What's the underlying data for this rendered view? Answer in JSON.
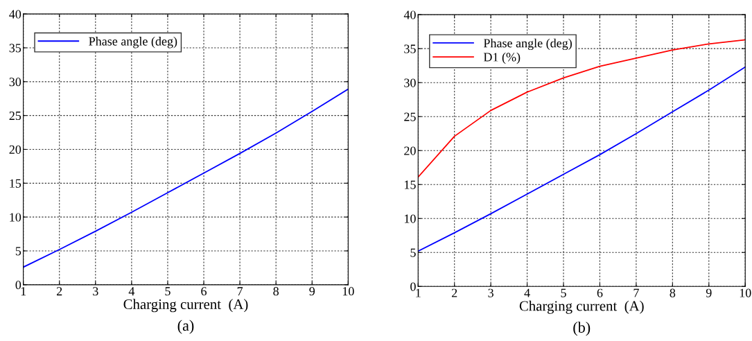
{
  "chart_data": [
    {
      "type": "line",
      "xlabel": "Charging current  (A)",
      "annotations": [
        "(a)"
      ],
      "x": [
        1,
        2,
        3,
        4,
        5,
        6,
        7,
        8,
        9,
        10
      ],
      "series": [
        {
          "name": "Phase angle (deg)",
          "color": "#0000ff",
          "values": [
            2.6,
            5.2,
            7.9,
            10.7,
            13.6,
            16.5,
            19.4,
            22.4,
            25.6,
            28.9
          ]
        }
      ],
      "xlim": [
        1,
        10
      ],
      "xticks": [
        1,
        2,
        3,
        4,
        5,
        6,
        7,
        8,
        9,
        10
      ],
      "ylim": [
        0,
        40
      ],
      "yticks": [
        0,
        5,
        10,
        15,
        20,
        25,
        30,
        35,
        40
      ],
      "grid": true,
      "legend": "top left"
    },
    {
      "type": "line",
      "xlabel": "Charging current  (A)",
      "annotations": [
        "(b)"
      ],
      "x": [
        1,
        2,
        3,
        4,
        5,
        6,
        7,
        8,
        9,
        10
      ],
      "series": [
        {
          "name": "Phase angle (deg)",
          "color": "#0000ff",
          "values": [
            5.2,
            7.9,
            10.7,
            13.6,
            16.5,
            19.4,
            22.5,
            25.7,
            28.9,
            32.3
          ]
        },
        {
          "name": "D1 (%)",
          "color": "#ff0000",
          "values": [
            16.1,
            22.1,
            25.9,
            28.6,
            30.7,
            32.4,
            33.6,
            34.8,
            35.7,
            36.3
          ]
        }
      ],
      "xlim": [
        1,
        10
      ],
      "xticks": [
        1,
        2,
        3,
        4,
        5,
        6,
        7,
        8,
        9,
        10
      ],
      "ylim": [
        0,
        40
      ],
      "yticks": [
        0,
        5,
        10,
        15,
        20,
        25,
        30,
        35,
        40
      ],
      "grid": true,
      "legend": "top left"
    }
  ]
}
